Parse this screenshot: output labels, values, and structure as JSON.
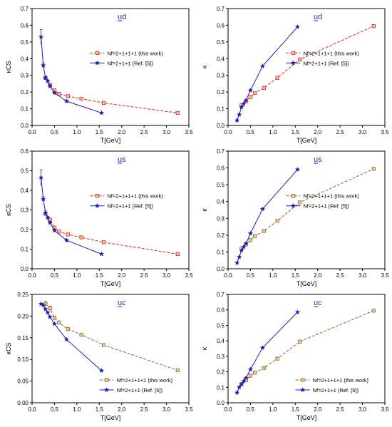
{
  "chart_data": [
    {
      "type": "line",
      "panel_label": "ud",
      "xlabel": "T[GeV]",
      "ylabel": "κCS",
      "xlim": [
        0,
        3.5
      ],
      "ylim": [
        0,
        0.7
      ],
      "xticks": [
        "0.0",
        "0.5",
        "1.0",
        "1.5",
        "2.0",
        "2.5",
        "3.0",
        "3.5"
      ],
      "yticks": [
        "0.0",
        "0.1",
        "0.2",
        "0.3",
        "0.4",
        "0.5",
        "0.6",
        "0.7"
      ],
      "legend_placement": "center-right",
      "series": [
        {
          "name": "Nf=2+1+1+1 (this work)",
          "color": "#e8201f",
          "dashed": true,
          "marker": "square",
          "x": [
            0.3,
            0.4,
            0.5,
            0.6,
            0.8,
            1.1,
            1.6,
            3.25
          ],
          "y": [
            0.285,
            0.245,
            0.21,
            0.19,
            0.175,
            0.16,
            0.135,
            0.075
          ]
        },
        {
          "name": "Nf=2+1+1 (Ref. [5])",
          "color": "#1e1eb4",
          "dashed": false,
          "marker": "star",
          "x": [
            0.2,
            0.25,
            0.3,
            0.35,
            0.4,
            0.5,
            0.77,
            1.55
          ],
          "y": [
            0.53,
            0.36,
            0.285,
            0.265,
            0.235,
            0.195,
            0.145,
            0.075
          ],
          "err": [
            0.045,
            0.015,
            0.01,
            0.008,
            0.008,
            0.006,
            0.005,
            0.004
          ]
        }
      ]
    },
    {
      "type": "line",
      "panel_label": "ud",
      "xlabel": "T[GeV]",
      "ylabel": "κ",
      "xlim": [
        0,
        3.5
      ],
      "ylim": [
        0,
        0.7
      ],
      "xticks": [
        "0.0",
        "0.5",
        "1.0",
        "1.5",
        "2.0",
        "2.5",
        "3.0",
        "3.5"
      ],
      "yticks": [
        "0.0",
        "0.1",
        "0.2",
        "0.3",
        "0.4",
        "0.5",
        "0.6",
        "0.7"
      ],
      "legend_placement": "center-right",
      "series": [
        {
          "name": "Nf=2+1+1+1 (this work)",
          "color": "#e8201f",
          "dashed": true,
          "marker": "square",
          "x": [
            0.3,
            0.4,
            0.5,
            0.6,
            0.8,
            1.1,
            1.6,
            3.25
          ],
          "y": [
            0.12,
            0.145,
            0.17,
            0.195,
            0.225,
            0.285,
            0.395,
            0.595
          ]
        },
        {
          "name": "Nf=2+1+1 (Ref. [5])",
          "color": "#1e1eb4",
          "dashed": false,
          "marker": "star",
          "x": [
            0.2,
            0.25,
            0.3,
            0.35,
            0.4,
            0.5,
            0.77,
            1.55
          ],
          "y": [
            0.03,
            0.065,
            0.11,
            0.13,
            0.15,
            0.21,
            0.355,
            0.59
          ]
        }
      ]
    },
    {
      "type": "line",
      "panel_label": "us",
      "xlabel": "T[GeV]",
      "ylabel": "κCS",
      "xlim": [
        0,
        3.5
      ],
      "ylim": [
        0,
        0.6
      ],
      "xticks": [
        "0.0",
        "0.5",
        "1.0",
        "1.5",
        "2.0",
        "2.5",
        "3.0",
        "3.5"
      ],
      "yticks": [
        "0.0",
        "0.1",
        "0.2",
        "0.3",
        "0.4",
        "0.5",
        "0.6"
      ],
      "legend_placement": "center-right",
      "series": [
        {
          "name": "Nf=2+1+1+1 (this work)",
          "color": "#e8201f",
          "dashed": true,
          "marker": "square",
          "x": [
            0.3,
            0.4,
            0.5,
            0.6,
            0.8,
            1.1,
            1.6,
            3.25
          ],
          "y": [
            0.28,
            0.25,
            0.21,
            0.19,
            0.175,
            0.16,
            0.135,
            0.075
          ]
        },
        {
          "name": "Nf=2+1+1 (Ref. [5])",
          "color": "#1e1eb4",
          "dashed": false,
          "marker": "star",
          "x": [
            0.2,
            0.25,
            0.3,
            0.35,
            0.4,
            0.5,
            0.77,
            1.55
          ],
          "y": [
            0.465,
            0.355,
            0.285,
            0.26,
            0.235,
            0.195,
            0.145,
            0.075
          ],
          "err": [
            0.04,
            0.012,
            0.01,
            0.008,
            0.008,
            0.006,
            0.005,
            0.004
          ]
        }
      ]
    },
    {
      "type": "line",
      "panel_label": "us",
      "xlabel": "T[GeV]",
      "ylabel": "κ",
      "xlim": [
        0,
        3.5
      ],
      "ylim": [
        0,
        0.7
      ],
      "xticks": [
        "0.0",
        "0.5",
        "1.0",
        "1.5",
        "2.0",
        "2.5",
        "3.0",
        "3.5"
      ],
      "yticks": [
        "0.0",
        "0.1",
        "0.2",
        "0.3",
        "0.4",
        "0.5",
        "0.6",
        "0.7"
      ],
      "legend_placement": "center-right",
      "series": [
        {
          "name": "Nf=2+1+1+1 (this work)",
          "color": "#8b6a2a",
          "dashed": true,
          "marker": "square",
          "x": [
            0.3,
            0.4,
            0.5,
            0.6,
            0.8,
            1.1,
            1.6,
            3.25
          ],
          "y": [
            0.12,
            0.145,
            0.17,
            0.195,
            0.225,
            0.285,
            0.395,
            0.595
          ]
        },
        {
          "name": "Nf=2+1+1 (Ref. [5])",
          "color": "#1e1eb4",
          "dashed": false,
          "marker": "star",
          "x": [
            0.2,
            0.25,
            0.3,
            0.35,
            0.4,
            0.5,
            0.77,
            1.55
          ],
          "y": [
            0.035,
            0.07,
            0.11,
            0.13,
            0.15,
            0.21,
            0.355,
            0.59
          ]
        }
      ]
    },
    {
      "type": "line",
      "panel_label": "uc",
      "xlabel": "T[GeV]",
      "ylabel": "κCS",
      "xlim": [
        0,
        3.5
      ],
      "ylim": [
        0,
        0.25
      ],
      "xticks": [
        "0.0",
        "0.5",
        "1.0",
        "1.5",
        "2.0",
        "2.5",
        "3.0",
        "3.5"
      ],
      "yticks": [
        "0.00",
        "0.05",
        "0.10",
        "0.15",
        "0.20",
        "0.25"
      ],
      "legend_placement": "bottom-right",
      "series": [
        {
          "name": "Nf=2+1+1+1 (this work)",
          "color": "#8b6a2a",
          "dashed": true,
          "marker": "square",
          "x": [
            0.3,
            0.4,
            0.5,
            0.6,
            0.8,
            1.1,
            1.6,
            3.25
          ],
          "y": [
            0.228,
            0.218,
            0.196,
            0.185,
            0.17,
            0.157,
            0.133,
            0.075
          ],
          "err": [
            0.006,
            0.005,
            0.004,
            0.004,
            0.003,
            0.003,
            0.003,
            0.002
          ]
        },
        {
          "name": "Nf=2+1+1 (Ref. [5])",
          "color": "#1e1eb4",
          "dashed": false,
          "marker": "star",
          "x": [
            0.2,
            0.25,
            0.3,
            0.35,
            0.4,
            0.5,
            0.77,
            1.55
          ],
          "y": [
            0.228,
            0.225,
            0.216,
            0.208,
            0.198,
            0.182,
            0.146,
            0.074
          ]
        }
      ]
    },
    {
      "type": "line",
      "panel_label": "uc",
      "xlabel": "T[GeV]",
      "ylabel": "κ",
      "xlim": [
        0,
        3.5
      ],
      "ylim": [
        0,
        0.7
      ],
      "xticks": [
        "0.0",
        "0.5",
        "1.0",
        "1.5",
        "2.0",
        "2.5",
        "3.0",
        "3.5"
      ],
      "yticks": [
        "0.0",
        "0.1",
        "0.2",
        "0.3",
        "0.4",
        "0.5",
        "0.6",
        "0.7"
      ],
      "legend_placement": "bottom-right",
      "series": [
        {
          "name": "Nf=2+1+1+1 (this work)",
          "color": "#8b6a2a",
          "dashed": true,
          "marker": "square",
          "x": [
            0.3,
            0.4,
            0.5,
            0.6,
            0.8,
            1.1,
            1.6,
            3.25
          ],
          "y": [
            0.12,
            0.145,
            0.175,
            0.195,
            0.225,
            0.285,
            0.395,
            0.595
          ]
        },
        {
          "name": "Nf=2+1+1 (Ref. [5])",
          "color": "#1e1eb4",
          "dashed": false,
          "marker": "star",
          "x": [
            0.2,
            0.25,
            0.3,
            0.35,
            0.4,
            0.5,
            0.77,
            1.55
          ],
          "y": [
            0.065,
            0.1,
            0.12,
            0.14,
            0.16,
            0.215,
            0.355,
            0.585
          ]
        }
      ]
    }
  ]
}
